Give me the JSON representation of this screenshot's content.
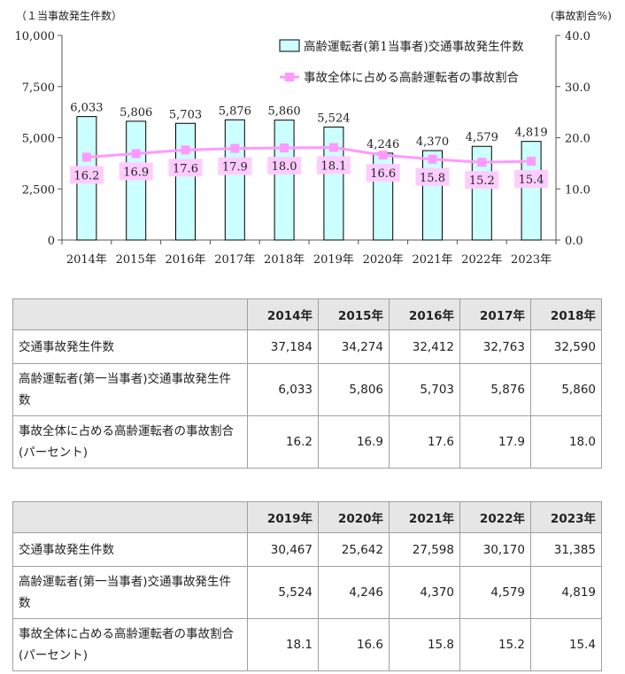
{
  "chart_data": {
    "type": "bar+line",
    "categories": [
      "2014年",
      "2015年",
      "2016年",
      "2017年",
      "2018年",
      "2019年",
      "2020年",
      "2021年",
      "2022年",
      "2023年"
    ],
    "series": [
      {
        "name": "高齢運転者(第1当事者)交通事故発生件数",
        "type": "bar",
        "axis": "left",
        "values": [
          6033,
          5806,
          5703,
          5876,
          5860,
          5524,
          4246,
          4370,
          4579,
          4819
        ],
        "labels": [
          "6,033",
          "5,806",
          "5,703",
          "5,876",
          "5,860",
          "5,524",
          "4,246",
          "4,370",
          "4,579",
          "4,819"
        ]
      },
      {
        "name": "事故全体に占める高齢運転者の事故割合",
        "type": "line",
        "axis": "right",
        "values": [
          16.2,
          16.9,
          17.6,
          17.9,
          18.0,
          18.1,
          16.6,
          15.8,
          15.2,
          15.4
        ],
        "labels": [
          "16.2",
          "16.9",
          "17.6",
          "17.9",
          "18.0",
          "18.1",
          "16.6",
          "15.8",
          "15.2",
          "15.4"
        ]
      }
    ],
    "ylabel_left": "（１当事故発生件数）",
    "ylabel_right": "(事故割合%)",
    "ylim_left": [
      0,
      10000
    ],
    "ylim_right": [
      0,
      40
    ],
    "yticks_left": [
      "0",
      "2,500",
      "5,000",
      "7,500",
      "10,000"
    ],
    "yticks_right": [
      "0.0",
      "10.0",
      "20.0",
      "30.0",
      "40.0"
    ],
    "grid": false,
    "legend_position": "top-right",
    "colors": {
      "bar_fill": "#ccffff",
      "bar_stroke": "#000000",
      "line": "#ff99ff",
      "label_bg": "#ffccff"
    }
  },
  "tables": [
    {
      "headers": [
        "2014年",
        "2015年",
        "2016年",
        "2017年",
        "2018年"
      ],
      "rows": [
        {
          "label": "交通事故発生件数",
          "values": [
            "37,184",
            "34,274",
            "32,412",
            "32,763",
            "32,590"
          ]
        },
        {
          "label": "高齢運転者(第一当事者)交通事故発生件数",
          "values": [
            "6,033",
            "5,806",
            "5,703",
            "5,876",
            "5,860"
          ]
        },
        {
          "label": "事故全体に占める高齢運転者の事故割合(パーセント)",
          "values": [
            "16.2",
            "16.9",
            "17.6",
            "17.9",
            "18.0"
          ]
        }
      ]
    },
    {
      "headers": [
        "2019年",
        "2020年",
        "2021年",
        "2022年",
        "2023年"
      ],
      "rows": [
        {
          "label": "交通事故発生件数",
          "values": [
            "30,467",
            "25,642",
            "27,598",
            "30,170",
            "31,385"
          ]
        },
        {
          "label": "高齢運転者(第一当事者)交通事故発生件数",
          "values": [
            "5,524",
            "4,246",
            "4,370",
            "4,579",
            "4,819"
          ]
        },
        {
          "label": "事故全体に占める高齢運転者の事故割合(パーセント)",
          "values": [
            "18.1",
            "16.6",
            "15.8",
            "15.2",
            "15.4"
          ]
        }
      ]
    }
  ]
}
